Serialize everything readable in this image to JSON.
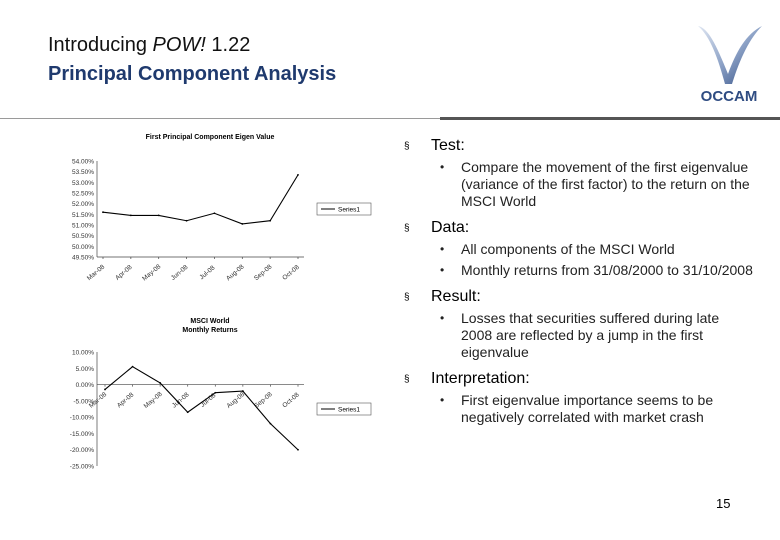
{
  "header": {
    "title_prefix": "Introducing ",
    "title_italic": "POW!",
    "title_suffix": " 1.22",
    "subtitle": "Principal Component Analysis",
    "logo_text": "OCCAM"
  },
  "colors": {
    "title_blue": "#1f3a6e",
    "logo_blue": "#3d5a8f"
  },
  "chart_data": [
    {
      "type": "line",
      "title": "First Principal Component Eigen Value",
      "categories": [
        "Mar-08",
        "Apr-08",
        "May-08",
        "Jun-08",
        "Jul-08",
        "Aug-08",
        "Sep-08",
        "Oct-08"
      ],
      "series": [
        {
          "name": "Series1",
          "values": [
            51.6,
            51.45,
            51.45,
            51.2,
            51.55,
            51.05,
            51.2,
            53.35
          ]
        }
      ],
      "y_ticks": [
        "54.00%",
        "53.50%",
        "53.00%",
        "52.50%",
        "52.00%",
        "51.50%",
        "51.00%",
        "50.50%",
        "50.00%",
        "49.50%"
      ],
      "ylim": [
        49.5,
        54.0
      ],
      "legend_position": "right",
      "grid": false
    },
    {
      "type": "line",
      "title": "MSCI World",
      "subtitle": "Monthly Returns",
      "categories": [
        "Mar-08",
        "Apr-08",
        "May-08",
        "Jun-08",
        "Jul-08",
        "Aug-08",
        "Sep-08",
        "Oct-08"
      ],
      "series": [
        {
          "name": "Series1",
          "values": [
            -1.5,
            5.5,
            0.5,
            -8.5,
            -2.5,
            -2.0,
            -12.0,
            -20.0
          ]
        }
      ],
      "y_ticks": [
        "10.00%",
        "5.00%",
        "0.00%",
        "-5.00%",
        "-10.00%",
        "-15.00%",
        "-20.00%",
        "-25.00%"
      ],
      "ylim": [
        -25,
        10
      ],
      "legend_position": "right",
      "grid": false
    }
  ],
  "bullets": [
    {
      "heading": "Test:",
      "items": [
        "Compare the movement of the first eigenvalue (variance of the first factor) to the return on the MSCI World"
      ]
    },
    {
      "heading": "Data:",
      "items": [
        "All components of the MSCI World",
        "Monthly returns from 31/08/2000 to 31/10/2008"
      ]
    },
    {
      "heading": "Result:",
      "items": [
        "Losses that securities suffered during late 2008 are reflected by a jump in the first eigenvalue"
      ]
    },
    {
      "heading": "Interpretation:",
      "items": [
        "First eigenvalue importance  seems to be negatively correlated with market crash"
      ]
    }
  ],
  "bullet_marker_l1": "§",
  "bullet_marker_l2": "•",
  "page_number": "15"
}
